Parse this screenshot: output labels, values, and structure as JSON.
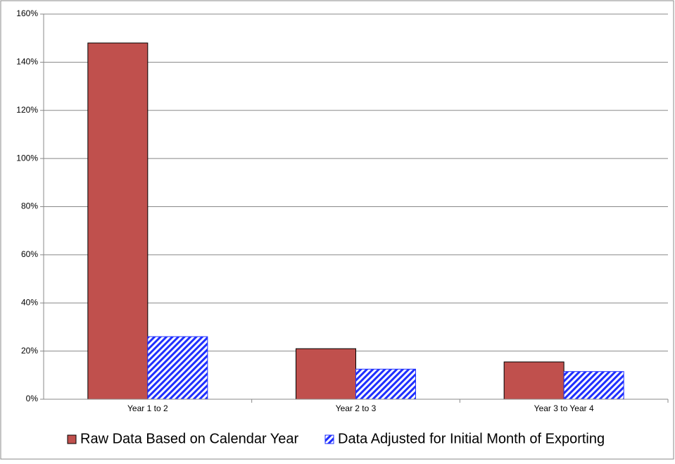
{
  "chart_data": {
    "type": "bar",
    "categories": [
      "Year 1 to 2",
      "Year 2 to 3",
      "Year 3 to Year 4"
    ],
    "series": [
      {
        "name": "Raw Data Based on Calendar Year",
        "color": "#c0504d",
        "values": [
          148,
          21,
          15.5
        ]
      },
      {
        "name": "Data Adjusted for Initial Month of Exporting",
        "color": "#1f2fff",
        "pattern": "hatch",
        "values": [
          26,
          12.5,
          11.5
        ]
      }
    ],
    "ylim": [
      0,
      160
    ],
    "yticks": [
      {
        "value": 0,
        "label": "0%"
      },
      {
        "value": 20,
        "label": "20%"
      },
      {
        "value": 40,
        "label": "40%"
      },
      {
        "value": 60,
        "label": "60%"
      },
      {
        "value": 80,
        "label": "80%"
      },
      {
        "value": 100,
        "label": "100%"
      },
      {
        "value": 120,
        "label": "120%"
      },
      {
        "value": 140,
        "label": "140%"
      },
      {
        "value": 160,
        "label": "160%"
      }
    ],
    "grid": true,
    "legend": "bottom"
  }
}
